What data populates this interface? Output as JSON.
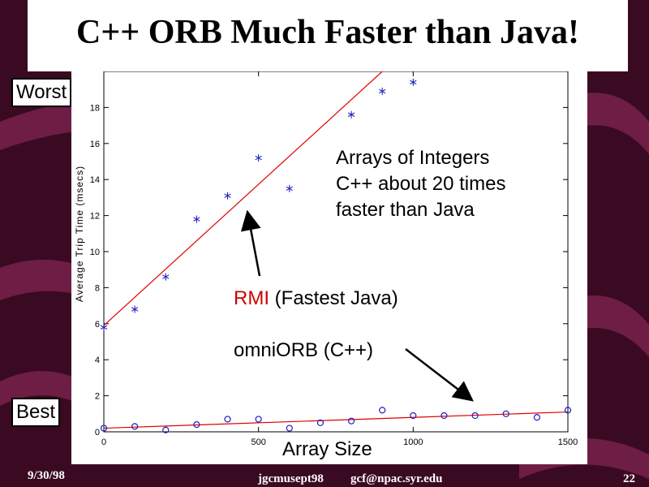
{
  "slide": {
    "title": "C++ ORB Much Faster than Java!",
    "worst_label": "Worst",
    "best_label": "Best",
    "annotation_lines": [
      "Arrays of Integers",
      "C++ about 20 times",
      "faster than Java"
    ],
    "rmi_label": "RMI",
    "rmi_suffix": " (Fastest Java)",
    "omni_label": "omniORB (C++)",
    "xlabel_overlay": "Array Size",
    "footer_date": "9/30/98",
    "footer_file": "jgcmusept98",
    "footer_email": "gcf@npac.syr.edu",
    "page_number": "22"
  },
  "colors": {
    "background": "#3a0a22",
    "stripe": "#6e1d45",
    "rmi_label": "#cc0000",
    "fit_line": "#e00000",
    "marker": "#1f1fbf"
  },
  "chart_data": {
    "type": "scatter",
    "ylabel": "Average Trip Time (msecs)",
    "xlim": [
      0,
      1500
    ],
    "ylim": [
      0,
      20
    ],
    "xticks": [
      0,
      500,
      1000,
      1500
    ],
    "yticks": [
      0,
      2,
      4,
      6,
      8,
      10,
      12,
      14,
      16,
      18
    ],
    "series": [
      {
        "name": "RMI",
        "marker": "star",
        "x": [
          0,
          100,
          200,
          300,
          400,
          500,
          600,
          800,
          900,
          1000
        ],
        "y": [
          5.8,
          6.8,
          8.6,
          11.8,
          13.1,
          15.2,
          13.5,
          17.6,
          18.9,
          19.4
        ],
        "fit": [
          [
            0,
            5.9
          ],
          [
            900,
            20
          ]
        ]
      },
      {
        "name": "omniORB",
        "marker": "circle",
        "x": [
          0,
          100,
          200,
          300,
          400,
          500,
          600,
          700,
          800,
          900,
          1000,
          1100,
          1200,
          1300,
          1400,
          1500
        ],
        "y": [
          0.2,
          0.3,
          0.1,
          0.4,
          0.7,
          0.7,
          0.2,
          0.5,
          0.6,
          1.2,
          0.9,
          0.9,
          0.9,
          1.0,
          0.8,
          1.2
        ],
        "fit": [
          [
            0,
            0.2
          ],
          [
            1500,
            1.1
          ]
        ]
      }
    ]
  }
}
